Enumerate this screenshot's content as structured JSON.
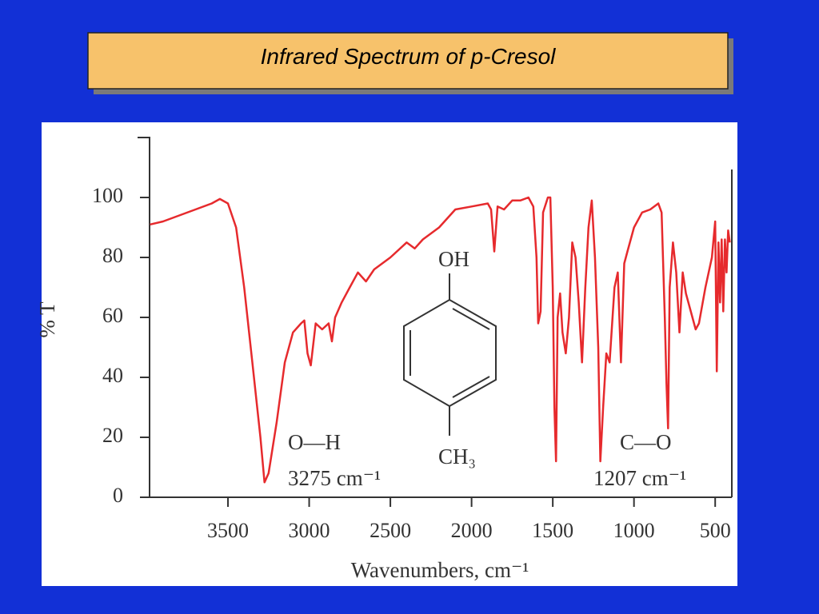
{
  "chart_data": {
    "type": "line",
    "title": "Infrared Spectrum of p-Cresol",
    "xlabel": "Wavenumbers, cm⁻¹",
    "ylabel": "% T",
    "color": "#e62a2d",
    "xlim": [
      4000,
      400
    ],
    "ylim": [
      0,
      120
    ],
    "xticks": [
      3500,
      3000,
      2500,
      2000,
      1500,
      1000,
      500
    ],
    "yticks": [
      0,
      20,
      40,
      60,
      80,
      100
    ],
    "x": [
      3980,
      3900,
      3800,
      3700,
      3600,
      3550,
      3500,
      3450,
      3400,
      3350,
      3300,
      3275,
      3250,
      3200,
      3150,
      3100,
      3050,
      3030,
      3010,
      2990,
      2960,
      2920,
      2880,
      2860,
      2840,
      2800,
      2750,
      2700,
      2650,
      2600,
      2500,
      2400,
      2350,
      2300,
      2200,
      2100,
      2000,
      1900,
      1880,
      1860,
      1840,
      1800,
      1750,
      1700,
      1650,
      1620,
      1600,
      1590,
      1575,
      1560,
      1530,
      1515,
      1500,
      1490,
      1480,
      1470,
      1455,
      1440,
      1420,
      1400,
      1380,
      1360,
      1340,
      1320,
      1300,
      1280,
      1260,
      1240,
      1220,
      1207,
      1190,
      1170,
      1150,
      1120,
      1100,
      1080,
      1060,
      1040,
      1000,
      950,
      900,
      850,
      830,
      810,
      800,
      790,
      780,
      760,
      740,
      720,
      700,
      680,
      650,
      620,
      600,
      560,
      520,
      500,
      490,
      480,
      470,
      460,
      450,
      440,
      430,
      420,
      410
    ],
    "values": [
      91,
      92,
      94,
      96,
      98,
      99.5,
      98,
      90,
      70,
      45,
      20,
      5,
      8,
      25,
      45,
      55,
      58,
      59,
      48,
      44,
      58,
      56,
      58,
      52,
      60,
      65,
      70,
      75,
      72,
      76,
      80,
      85,
      83,
      86,
      90,
      96,
      97,
      98,
      96,
      82,
      97,
      96,
      99,
      99,
      100,
      97,
      80,
      58,
      62,
      95,
      100,
      100,
      70,
      30,
      12,
      60,
      68,
      55,
      48,
      60,
      85,
      80,
      65,
      45,
      70,
      90,
      99,
      80,
      50,
      12,
      30,
      48,
      45,
      70,
      75,
      45,
      78,
      82,
      90,
      95,
      96,
      98,
      95,
      60,
      38,
      23,
      70,
      85,
      75,
      55,
      75,
      68,
      62,
      56,
      58,
      70,
      80,
      92,
      42,
      85,
      65,
      86,
      62,
      86,
      75,
      89,
      85
    ],
    "annotations": [
      "OH",
      "CH₃",
      "O—H",
      "3275 cm⁻¹",
      "C—O",
      "1207 cm⁻¹"
    ]
  }
}
